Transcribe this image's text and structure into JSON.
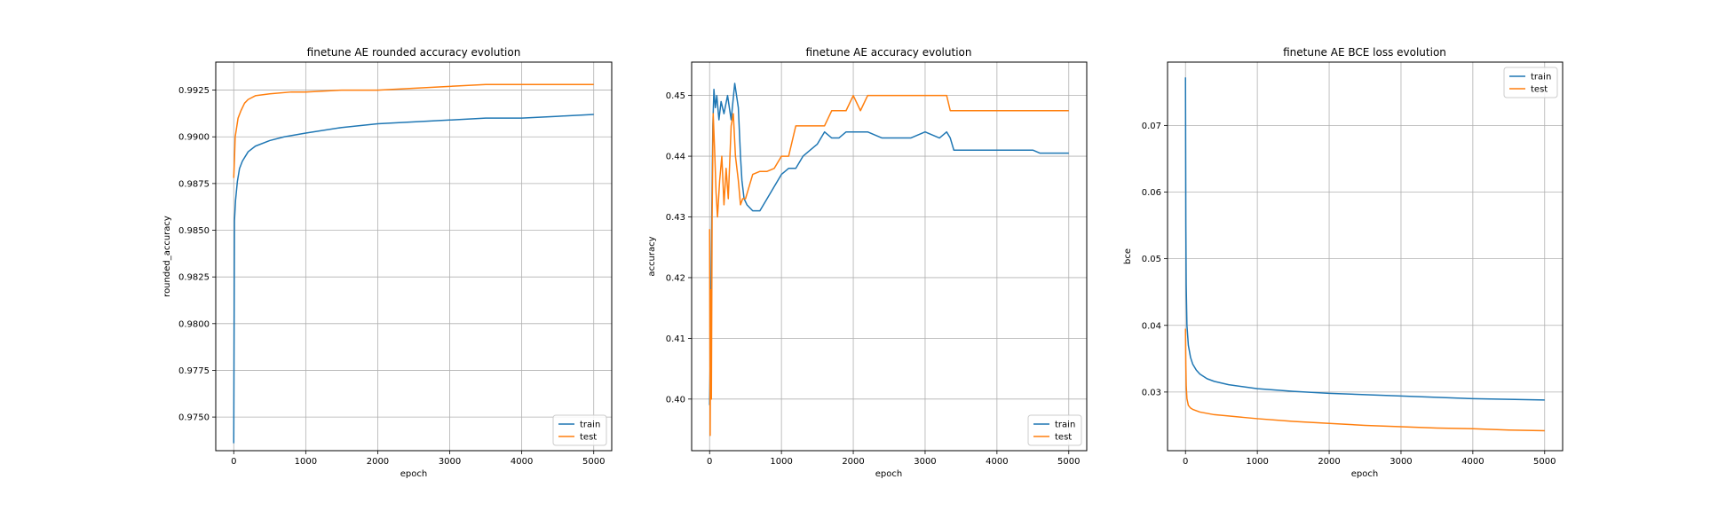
{
  "chart_data": [
    {
      "type": "line",
      "title": "finetune AE rounded accuracy evolution",
      "xlabel": "epoch",
      "ylabel": "rounded_accuracy",
      "xlim": [
        -250,
        5250
      ],
      "ylim": [
        0.9732,
        0.994
      ],
      "xticks": [
        0,
        1000,
        2000,
        3000,
        4000,
        5000
      ],
      "yticks": [
        0.975,
        0.9775,
        0.98,
        0.9825,
        0.985,
        0.9875,
        0.99,
        0.9925
      ],
      "xtick_labels": [
        "0",
        "1000",
        "2000",
        "3000",
        "4000",
        "5000"
      ],
      "ytick_labels": [
        "0.9750",
        "0.9775",
        "0.9800",
        "0.9825",
        "0.9850",
        "0.9875",
        "0.9900",
        "0.9925"
      ],
      "grid": true,
      "legend": "lower-right",
      "series": [
        {
          "name": "train",
          "color": "#1f77b4",
          "x": [
            0,
            10,
            25,
            50,
            80,
            120,
            200,
            300,
            500,
            700,
            1000,
            1500,
            2000,
            2500,
            3000,
            3500,
            4000,
            4500,
            5000
          ],
          "y": [
            0.9736,
            0.9855,
            0.9866,
            0.9876,
            0.9883,
            0.9887,
            0.9892,
            0.9895,
            0.9898,
            0.99,
            0.9902,
            0.9905,
            0.9907,
            0.9908,
            0.9909,
            0.991,
            0.991,
            0.9911,
            0.9912
          ]
        },
        {
          "name": "test",
          "color": "#ff7f0e",
          "x": [
            0,
            10,
            20,
            40,
            60,
            100,
            150,
            200,
            300,
            500,
            800,
            1000,
            1500,
            2000,
            2500,
            3000,
            3500,
            4000,
            4500,
            5000
          ],
          "y": [
            0.9878,
            0.9888,
            0.99,
            0.9905,
            0.991,
            0.9914,
            0.9918,
            0.992,
            0.9922,
            0.9923,
            0.9924,
            0.9924,
            0.9925,
            0.9925,
            0.9926,
            0.9927,
            0.9928,
            0.9928,
            0.9928,
            0.9928
          ]
        }
      ]
    },
    {
      "type": "line",
      "title": "finetune AE accuracy evolution",
      "xlabel": "epoch",
      "ylabel": "accuracy",
      "xlim": [
        -250,
        5250
      ],
      "ylim": [
        0.3915,
        0.4555
      ],
      "xticks": [
        0,
        1000,
        2000,
        3000,
        4000,
        5000
      ],
      "yticks": [
        0.4,
        0.41,
        0.42,
        0.43,
        0.44,
        0.45
      ],
      "xtick_labels": [
        "0",
        "1000",
        "2000",
        "3000",
        "4000",
        "5000"
      ],
      "ytick_labels": [
        "0.40",
        "0.41",
        "0.42",
        "0.43",
        "0.44",
        "0.45"
      ],
      "grid": true,
      "legend": "lower-right",
      "series": [
        {
          "name": "train",
          "color": "#1f77b4",
          "x": [
            0,
            15,
            30,
            45,
            60,
            80,
            100,
            130,
            160,
            200,
            250,
            300,
            350,
            400,
            430,
            450,
            480,
            520,
            600,
            700,
            800,
            900,
            1000,
            1100,
            1200,
            1300,
            1400,
            1500,
            1600,
            1700,
            1800,
            1900,
            2000,
            2200,
            2400,
            2600,
            2800,
            3000,
            3200,
            3300,
            3350,
            3400,
            3500,
            4000,
            4500,
            4600,
            5000
          ],
          "y": [
            0.399,
            0.412,
            0.43,
            0.445,
            0.451,
            0.448,
            0.45,
            0.446,
            0.449,
            0.447,
            0.45,
            0.446,
            0.452,
            0.448,
            0.44,
            0.436,
            0.433,
            0.432,
            0.431,
            0.431,
            0.433,
            0.435,
            0.437,
            0.438,
            0.438,
            0.44,
            0.441,
            0.442,
            0.444,
            0.443,
            0.443,
            0.444,
            0.444,
            0.444,
            0.443,
            0.443,
            0.443,
            0.444,
            0.443,
            0.444,
            0.443,
            0.441,
            0.441,
            0.441,
            0.441,
            0.4405,
            0.4405
          ]
        },
        {
          "name": "test",
          "color": "#ff7f0e",
          "x": [
            0,
            8,
            15,
            25,
            35,
            50,
            70,
            90,
            110,
            140,
            170,
            200,
            230,
            260,
            300,
            330,
            360,
            400,
            430,
            460,
            500,
            550,
            600,
            700,
            800,
            900,
            1000,
            1100,
            1200,
            1300,
            1400,
            1500,
            1600,
            1700,
            1800,
            1900,
            2000,
            2100,
            2200,
            2500,
            3000,
            3300,
            3350,
            3400,
            3500,
            4000,
            4500,
            5000
          ],
          "y": [
            0.428,
            0.394,
            0.418,
            0.4,
            0.43,
            0.447,
            0.441,
            0.434,
            0.43,
            0.436,
            0.44,
            0.432,
            0.438,
            0.433,
            0.445,
            0.447,
            0.44,
            0.436,
            0.432,
            0.433,
            0.433,
            0.435,
            0.437,
            0.4375,
            0.4375,
            0.438,
            0.44,
            0.44,
            0.445,
            0.445,
            0.445,
            0.445,
            0.445,
            0.4475,
            0.4475,
            0.4475,
            0.45,
            0.4475,
            0.45,
            0.45,
            0.45,
            0.45,
            0.4475,
            0.4475,
            0.4475,
            0.4475,
            0.4475,
            0.4475
          ]
        }
      ]
    },
    {
      "type": "line",
      "title": "finetune AE BCE loss evolution",
      "xlabel": "epoch",
      "ylabel": "bce",
      "xlim": [
        -250,
        5250
      ],
      "ylim": [
        0.0212,
        0.0795
      ],
      "xticks": [
        0,
        1000,
        2000,
        3000,
        4000,
        5000
      ],
      "yticks": [
        0.03,
        0.04,
        0.05,
        0.06,
        0.07
      ],
      "xtick_labels": [
        "0",
        "1000",
        "2000",
        "3000",
        "4000",
        "5000"
      ],
      "ytick_labels": [
        "0.03",
        "0.04",
        "0.05",
        "0.06",
        "0.07"
      ],
      "grid": true,
      "legend": "upper-right",
      "series": [
        {
          "name": "train",
          "color": "#1f77b4",
          "x": [
            0,
            5,
            10,
            20,
            40,
            70,
            100,
            150,
            200,
            300,
            400,
            600,
            800,
            1000,
            1500,
            2000,
            2500,
            3000,
            3500,
            4000,
            4500,
            5000
          ],
          "y": [
            0.0772,
            0.055,
            0.046,
            0.04,
            0.037,
            0.0352,
            0.0342,
            0.0333,
            0.0327,
            0.032,
            0.0316,
            0.0311,
            0.0308,
            0.0305,
            0.0301,
            0.0298,
            0.0296,
            0.0294,
            0.0292,
            0.029,
            0.0289,
            0.0288
          ]
        },
        {
          "name": "test",
          "color": "#ff7f0e",
          "x": [
            0,
            5,
            10,
            20,
            40,
            70,
            100,
            150,
            200,
            300,
            400,
            600,
            800,
            1000,
            1500,
            2000,
            2500,
            3000,
            3500,
            4000,
            4500,
            5000
          ],
          "y": [
            0.0395,
            0.034,
            0.031,
            0.029,
            0.028,
            0.0276,
            0.0274,
            0.0272,
            0.027,
            0.0268,
            0.0266,
            0.0264,
            0.0262,
            0.026,
            0.0256,
            0.0253,
            0.025,
            0.0248,
            0.0246,
            0.0245,
            0.0243,
            0.0242
          ]
        }
      ]
    }
  ]
}
